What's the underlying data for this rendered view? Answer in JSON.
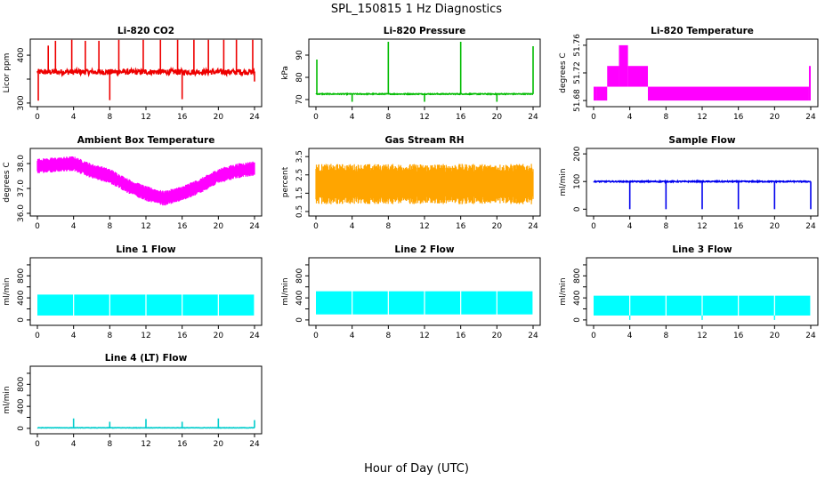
{
  "figure_title": "SPL_150815  1 Hz Diagnostics",
  "xlabel": "Hour of Day (UTC)",
  "chart_data": [
    {
      "type": "line",
      "title": "Li-820 CO2",
      "ylabel": "Licor ppm",
      "color": "#ee0000",
      "xlim": [
        0,
        24
      ],
      "xticks": [
        0,
        4,
        8,
        12,
        16,
        20,
        24
      ],
      "ylim": [
        298,
        428
      ],
      "yticks": [
        300,
        350,
        400
      ],
      "yticklabels": [
        "300",
        "",
        "400"
      ],
      "base": 365,
      "noise": 6,
      "band": 0,
      "spikes": [
        {
          "x": 1.2,
          "y": 420
        },
        {
          "x": 2.0,
          "y": 430
        },
        {
          "x": 3.8,
          "y": 432
        },
        {
          "x": 5.3,
          "y": 430
        },
        {
          "x": 6.8,
          "y": 430
        },
        {
          "x": 9.0,
          "y": 432
        },
        {
          "x": 11.7,
          "y": 432
        },
        {
          "x": 13.6,
          "y": 432
        },
        {
          "x": 15.5,
          "y": 432
        },
        {
          "x": 17.3,
          "y": 432
        },
        {
          "x": 18.9,
          "y": 432
        },
        {
          "x": 20.6,
          "y": 432
        },
        {
          "x": 22.0,
          "y": 432
        },
        {
          "x": 23.8,
          "y": 432
        }
      ],
      "dips": [
        {
          "x": 0.1,
          "y": 305
        },
        {
          "x": 8.0,
          "y": 306
        },
        {
          "x": 16.0,
          "y": 308
        },
        {
          "x": 24.0,
          "y": 345
        }
      ]
    },
    {
      "type": "line",
      "title": "Li-820 Pressure",
      "ylabel": "kPa",
      "color": "#00bb00",
      "xlim": [
        0,
        24
      ],
      "xticks": [
        0,
        4,
        8,
        12,
        16,
        20,
        24
      ],
      "ylim": [
        68,
        96
      ],
      "yticks": [
        70,
        80,
        90
      ],
      "yticklabels": [
        "70",
        "80",
        "90"
      ],
      "base": 72.5,
      "noise": 0.2,
      "band": 0,
      "spikes": [
        {
          "x": 0.1,
          "y": 88
        },
        {
          "x": 8.0,
          "y": 96
        },
        {
          "x": 16.0,
          "y": 96
        },
        {
          "x": 24.0,
          "y": 94
        }
      ],
      "dips": [
        {
          "x": 4.0,
          "y": 69
        },
        {
          "x": 12.0,
          "y": 69
        },
        {
          "x": 20.0,
          "y": 69
        }
      ]
    },
    {
      "type": "step",
      "title": "Li-820 Temperature",
      "ylabel": "degrees C",
      "color": "#ff00ff",
      "xlim": [
        0,
        24
      ],
      "xticks": [
        0,
        4,
        8,
        12,
        16,
        20,
        24
      ],
      "ylim": [
        51.675,
        51.765
      ],
      "yticks": [
        51.68,
        51.72,
        51.76
      ],
      "yticklabels": [
        "51.68",
        "51.72",
        "51.76"
      ],
      "segments": [
        {
          "x0": 0.0,
          "x1": 0.3,
          "lo": 51.68,
          "hi": 51.7
        },
        {
          "x0": 0.3,
          "x1": 1.5,
          "lo": 51.68,
          "hi": 51.7
        },
        {
          "x0": 1.5,
          "x1": 2.8,
          "lo": 51.7,
          "hi": 51.73
        },
        {
          "x0": 2.8,
          "x1": 3.8,
          "lo": 51.7,
          "hi": 51.76
        },
        {
          "x0": 3.8,
          "x1": 6.0,
          "lo": 51.7,
          "hi": 51.73
        },
        {
          "x0": 6.0,
          "x1": 23.8,
          "lo": 51.68,
          "hi": 51.7
        },
        {
          "x0": 23.8,
          "x1": 24.0,
          "lo": 51.68,
          "hi": 51.73
        }
      ]
    },
    {
      "type": "band",
      "title": "Ambient Box Temperature",
      "ylabel": "degrees C",
      "color": "#ff00ff",
      "xlim": [
        0,
        24
      ],
      "xticks": [
        0,
        4,
        8,
        12,
        16,
        20,
        24
      ],
      "ylim": [
        36.0,
        38.5
      ],
      "yticks": [
        36.0,
        37.0,
        38.0
      ],
      "yticklabels": [
        "36.0",
        "37.0",
        "38.0"
      ],
      "center": [
        [
          0,
          37.9
        ],
        [
          2,
          37.95
        ],
        [
          4,
          38.0
        ],
        [
          6,
          37.7
        ],
        [
          8,
          37.5
        ],
        [
          10,
          37.1
        ],
        [
          12,
          36.8
        ],
        [
          14,
          36.6
        ],
        [
          16,
          36.8
        ],
        [
          18,
          37.1
        ],
        [
          20,
          37.5
        ],
        [
          22,
          37.7
        ],
        [
          24,
          37.8
        ]
      ],
      "band": 0.6
    },
    {
      "type": "band",
      "title": "Gas Stream RH",
      "ylabel": "percent",
      "color": "#ffa500",
      "xlim": [
        0,
        24
      ],
      "xticks": [
        0,
        4,
        8,
        12,
        16,
        20,
        24
      ],
      "ylim": [
        0.4,
        3.8
      ],
      "yticks": [
        0.5,
        1.5,
        2.5,
        3.5
      ],
      "yticklabels": [
        "0.5",
        "1.5",
        "2.5",
        "3.5"
      ],
      "center": [
        [
          0,
          2.0
        ],
        [
          24,
          2.0
        ]
      ],
      "band": 2.2
    },
    {
      "type": "line",
      "title": "Sample Flow",
      "ylabel": "ml/min",
      "color": "#0000ee",
      "xlim": [
        0,
        24
      ],
      "xticks": [
        0,
        4,
        8,
        12,
        16,
        20,
        24
      ],
      "ylim": [
        -15,
        210
      ],
      "yticks": [
        0,
        100,
        200
      ],
      "yticklabels": [
        "0",
        "100",
        "200"
      ],
      "base": 100,
      "noise": 2,
      "band": 0,
      "spikes": [],
      "dips": [
        {
          "x": 4.0,
          "y": 0
        },
        {
          "x": 8.0,
          "y": 0
        },
        {
          "x": 12.0,
          "y": 0
        },
        {
          "x": 16.0,
          "y": 0
        },
        {
          "x": 20.0,
          "y": 0
        },
        {
          "x": 24.0,
          "y": 0
        }
      ]
    },
    {
      "type": "flow",
      "title": "Line 1 Flow",
      "ylabel": "ml/min",
      "color": "#00ffff",
      "xlim": [
        0,
        24
      ],
      "xticks": [
        0,
        4,
        8,
        12,
        16,
        20,
        24
      ],
      "ylim": [
        -50,
        1080
      ],
      "yticks": [
        0,
        200,
        400,
        600,
        800,
        1000
      ],
      "yticklabels": [
        "0",
        "",
        "400",
        "",
        "800",
        ""
      ],
      "lo": 80,
      "hi": 460,
      "gaps": [
        4,
        8,
        12,
        16,
        20,
        24
      ],
      "dips": []
    },
    {
      "type": "flow",
      "title": "Line 2 Flow",
      "ylabel": "ml/min",
      "color": "#00ffff",
      "xlim": [
        0,
        24
      ],
      "xticks": [
        0,
        4,
        8,
        12,
        16,
        20,
        24
      ],
      "ylim": [
        -50,
        1080
      ],
      "yticks": [
        0,
        200,
        400,
        600,
        800,
        1000
      ],
      "yticklabels": [
        "0",
        "",
        "400",
        "",
        "800",
        ""
      ],
      "lo": 100,
      "hi": 520,
      "gaps": [
        4,
        8,
        12,
        16,
        20,
        24
      ],
      "dips": []
    },
    {
      "type": "flow",
      "title": "Line 3 Flow",
      "ylabel": "ml/min",
      "color": "#00ffff",
      "xlim": [
        0,
        24
      ],
      "xticks": [
        0,
        4,
        8,
        12,
        16,
        20,
        24
      ],
      "ylim": [
        -50,
        1080
      ],
      "yticks": [
        0,
        200,
        400,
        600,
        800,
        1000
      ],
      "yticklabels": [
        "0",
        "",
        "400",
        "",
        "800",
        ""
      ],
      "lo": 80,
      "hi": 440,
      "gaps": [
        4,
        8,
        12,
        16,
        20,
        24
      ],
      "dips": [
        {
          "x": 4.0,
          "y": 0
        },
        {
          "x": 12.0,
          "y": 0
        },
        {
          "x": 20.0,
          "y": 0
        }
      ]
    },
    {
      "type": "line",
      "title": "Line 4 (LT) Flow",
      "ylabel": "ml/min",
      "color": "#00cccc",
      "xlim": [
        0,
        24
      ],
      "xticks": [
        0,
        4,
        8,
        12,
        16,
        20,
        24
      ],
      "ylim": [
        -50,
        1080
      ],
      "yticks": [
        0,
        200,
        400,
        600,
        800,
        1000
      ],
      "yticklabels": [
        "0",
        "",
        "400",
        "",
        "800",
        ""
      ],
      "base": 10,
      "noise": 3,
      "band": 0,
      "spikes": [
        {
          "x": 4.0,
          "y": 180
        },
        {
          "x": 8.0,
          "y": 120
        },
        {
          "x": 12.0,
          "y": 170
        },
        {
          "x": 16.0,
          "y": 120
        },
        {
          "x": 20.0,
          "y": 180
        },
        {
          "x": 24.0,
          "y": 150
        }
      ],
      "dips": []
    }
  ]
}
